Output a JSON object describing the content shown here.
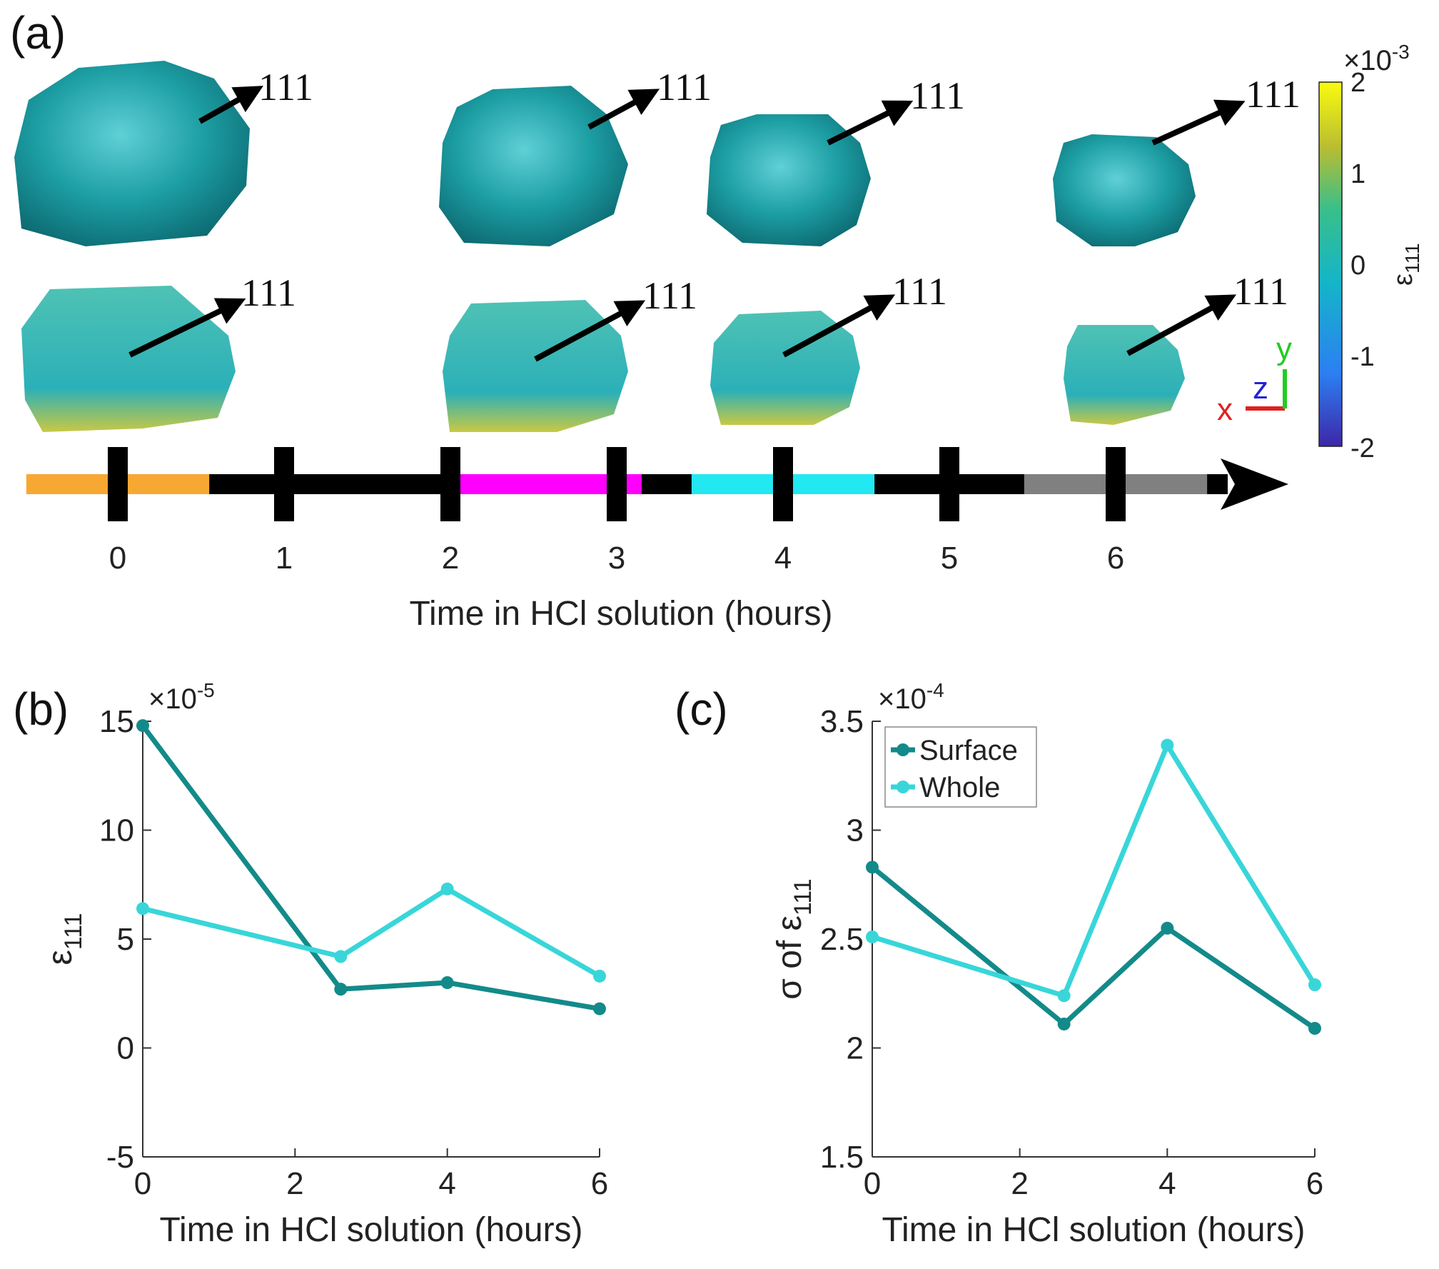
{
  "panels": {
    "a": {
      "label": "(a)",
      "direction_label": "111",
      "timeline_ticks": [
        "0",
        "1",
        "2",
        "3",
        "4",
        "5",
        "6"
      ],
      "timeline_title": "Time in HCl solution (hours)",
      "segment_colors": [
        "#f7a832",
        "#ff00ff",
        "#22e8f2",
        "#808080"
      ],
      "particles": [
        {
          "time": 0,
          "color": "#1e9e9e"
        },
        {
          "time": 2.6,
          "color": "#1e9e9e"
        },
        {
          "time": 4,
          "color": "#1e9e9e"
        },
        {
          "time": 6,
          "color": "#1e9e9e"
        }
      ],
      "axes_triad": {
        "x": "x",
        "y": "y",
        "z": "z"
      },
      "colorbar": {
        "label": "ε111",
        "label_base": "ε",
        "label_sub": "111",
        "multiplier": "×10",
        "multiplier_exp": "-3",
        "ticks": [
          "2",
          "1",
          "0",
          "-1",
          "-2"
        ],
        "range": [
          -2,
          2
        ]
      }
    },
    "b": {
      "label": "(b)"
    },
    "c": {
      "label": "(c)"
    }
  },
  "chart_data": [
    {
      "id": "b",
      "type": "line",
      "title": "",
      "xlabel": "Time in HCl solution (hours)",
      "ylabel": "ε111",
      "ylabel_base": "ε",
      "ylabel_sub": "111",
      "multiplier": "×10",
      "multiplier_exp": "-5",
      "xlim": [
        0,
        6
      ],
      "ylim": [
        -5,
        15
      ],
      "xticks": [
        0,
        2,
        4,
        6
      ],
      "yticks": [
        -5,
        0,
        5,
        10,
        15
      ],
      "series": [
        {
          "name": "Surface",
          "color": "#138a8a",
          "x": [
            0,
            2.6,
            4,
            6
          ],
          "y": [
            14.8,
            2.7,
            3.0,
            1.8
          ]
        },
        {
          "name": "Whole",
          "color": "#38d6d9",
          "x": [
            0,
            2.6,
            4,
            6
          ],
          "y": [
            6.4,
            4.2,
            7.3,
            3.3
          ]
        }
      ]
    },
    {
      "id": "c",
      "type": "line",
      "title": "",
      "xlabel": "Time in HCl solution (hours)",
      "ylabel": "σ of ε111",
      "ylabel_prefix": "σ of ε",
      "ylabel_sub": "111",
      "multiplier": "×10",
      "multiplier_exp": "-4",
      "xlim": [
        0,
        6
      ],
      "ylim": [
        1.5,
        3.5
      ],
      "xticks": [
        0,
        2,
        4,
        6
      ],
      "yticks": [
        1.5,
        2,
        2.5,
        3,
        3.5
      ],
      "ytick_labels": [
        "1.5",
        "2",
        "2.5",
        "3",
        "3.5"
      ],
      "legend": "top-left",
      "series": [
        {
          "name": "Surface",
          "color": "#138a8a",
          "x": [
            0,
            2.6,
            4,
            6
          ],
          "y": [
            2.83,
            2.11,
            2.55,
            2.09
          ]
        },
        {
          "name": "Whole",
          "color": "#38d6d9",
          "x": [
            0,
            2.6,
            4,
            6
          ],
          "y": [
            2.51,
            2.24,
            3.39,
            2.29
          ]
        }
      ]
    }
  ]
}
